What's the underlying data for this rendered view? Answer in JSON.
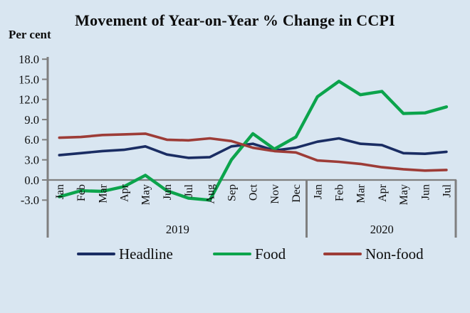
{
  "title": "Movement of Year-on-Year % Change in CCPI",
  "y_axis_label": "Per cent",
  "chart_data": {
    "type": "line",
    "x_categories": [
      "Jan",
      "Feb",
      "Mar",
      "Apr",
      "May",
      "Jun",
      "Jul",
      "Aug",
      "Sep",
      "Oct",
      "Nov",
      "Dec",
      "Jan",
      "Feb",
      "Mar",
      "Apr",
      "May",
      "Jun",
      "Jul"
    ],
    "year_groups": [
      {
        "label": "2019",
        "start_index": 0,
        "end_index": 11
      },
      {
        "label": "2020",
        "start_index": 12,
        "end_index": 18
      }
    ],
    "y_ticks": [
      "18.0",
      "15.0",
      "12.0",
      "9.0",
      "6.0",
      "3.0",
      "0.0",
      "-3.0"
    ],
    "ylim": [
      -3.0,
      18.0
    ],
    "y_step": 3.0,
    "grid": "off",
    "legend_position": "bottom",
    "axis_color": "#7f7f7f",
    "series": [
      {
        "name": "Headline",
        "color": "#1a2d63",
        "values": [
          3.7,
          4.0,
          4.3,
          4.5,
          5.0,
          3.8,
          3.3,
          3.4,
          5.0,
          5.4,
          4.4,
          4.8,
          5.7,
          6.2,
          5.4,
          5.2,
          4.0,
          3.9,
          4.2
        ]
      },
      {
        "name": "Food",
        "color": "#0ca44c",
        "values": [
          -2.5,
          -1.6,
          -1.7,
          -1.0,
          0.7,
          -1.6,
          -2.7,
          -3.0,
          3.0,
          6.9,
          4.6,
          6.4,
          12.4,
          14.7,
          12.7,
          13.2,
          9.9,
          10.0,
          10.9
        ]
      },
      {
        "name": "Non-food",
        "color": "#9d3c37",
        "values": [
          6.3,
          6.4,
          6.7,
          6.8,
          6.9,
          6.0,
          5.9,
          6.2,
          5.8,
          4.8,
          4.3,
          4.1,
          2.9,
          2.7,
          2.4,
          1.9,
          1.6,
          1.4,
          1.5
        ]
      }
    ]
  }
}
